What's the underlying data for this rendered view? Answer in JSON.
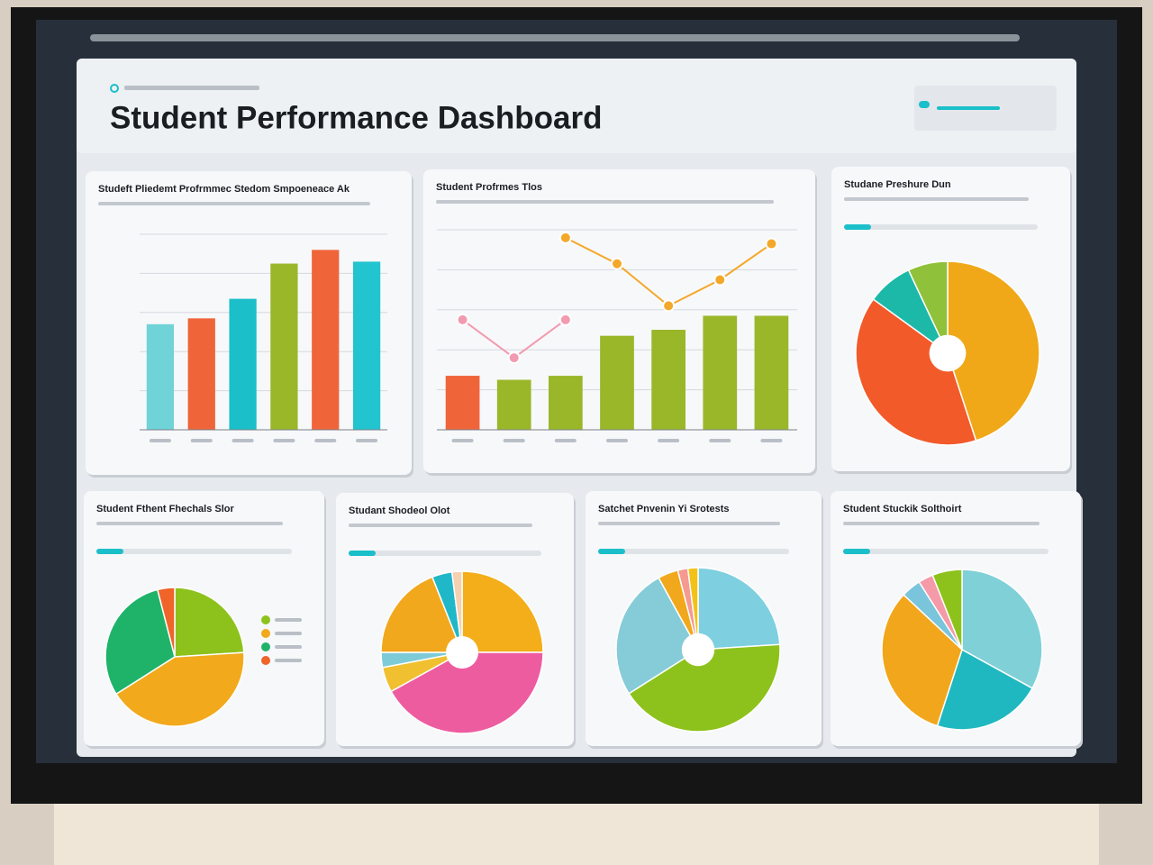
{
  "header": {
    "title": "Student Performance Dashboard"
  },
  "chart_data": [
    {
      "type": "bar",
      "title": "Studeft Pliedemt Profrmmec Stedom Smpoeneace Ak",
      "categories": [
        null,
        null,
        null,
        null,
        null,
        null
      ],
      "values": [
        54,
        57,
        67,
        85,
        92,
        86
      ],
      "colors": [
        "#6fd3d8",
        "#f0643a",
        "#1bbfc9",
        "#9ab72a",
        "#f0643a",
        "#22c4cf"
      ],
      "ylim": [
        0,
        100
      ],
      "grid": true
    },
    {
      "type": "combo",
      "title": "Student Profrmes Tlos",
      "categories": [
        null,
        null,
        null,
        null,
        null,
        null,
        null
      ],
      "values": [
        27,
        25,
        27,
        47,
        50,
        57,
        57
      ],
      "colors": [
        "#f0643a",
        "#9ab72a",
        "#9ab72a",
        "#9ab72a",
        "#9ab72a",
        "#9ab72a",
        "#9ab72a"
      ],
      "series": [
        {
          "color": "#f29ab0",
          "values": [
            55,
            36,
            55,
            null,
            null,
            null,
            null
          ]
        },
        {
          "color": "#f4a82a",
          "values": [
            null,
            null,
            96,
            83,
            62,
            75,
            93
          ]
        }
      ],
      "ylim": [
        0,
        100
      ],
      "grid": true
    },
    {
      "type": "pie",
      "title": "Studane Preshure Dun",
      "donut": true,
      "values": [
        45,
        40,
        8,
        7
      ],
      "colors": [
        "#f0a818",
        "#f25a2a",
        "#1cb8a8",
        "#8fc23a"
      ]
    },
    {
      "type": "pie",
      "title": "Student Fthent Fhechals Slor",
      "donut": false,
      "values": [
        24,
        42,
        30,
        4
      ],
      "colors": [
        "#8dc21c",
        "#f2a91c",
        "#1fb36a",
        "#f0642a"
      ]
    },
    {
      "type": "pie",
      "title": "Studant Shodeol Olot",
      "donut": true,
      "values": [
        25,
        42,
        5,
        3,
        19,
        4,
        2
      ],
      "colors": [
        "#f3ae1a",
        "#ee5ca0",
        "#f0c030",
        "#7ecbd8",
        "#f2a81c",
        "#20b8c8",
        "#f6d0b0"
      ]
    },
    {
      "type": "pie",
      "title": "Satchet Pnvenin Yi Srotests",
      "donut": true,
      "values": [
        24,
        42,
        26,
        4,
        2,
        2
      ],
      "colors": [
        "#7ecfe0",
        "#8dc21c",
        "#86ccd8",
        "#f2a81c",
        "#f59a90",
        "#f3c21a"
      ]
    },
    {
      "type": "pie",
      "title": "Student Stuckik Solthoirt",
      "donut": false,
      "values": [
        33,
        22,
        32,
        4,
        3,
        6
      ],
      "colors": [
        "#80d0d8",
        "#20b8c0",
        "#f2a61c",
        "#7ac5dc",
        "#f49aa8",
        "#8dc21c"
      ]
    }
  ]
}
